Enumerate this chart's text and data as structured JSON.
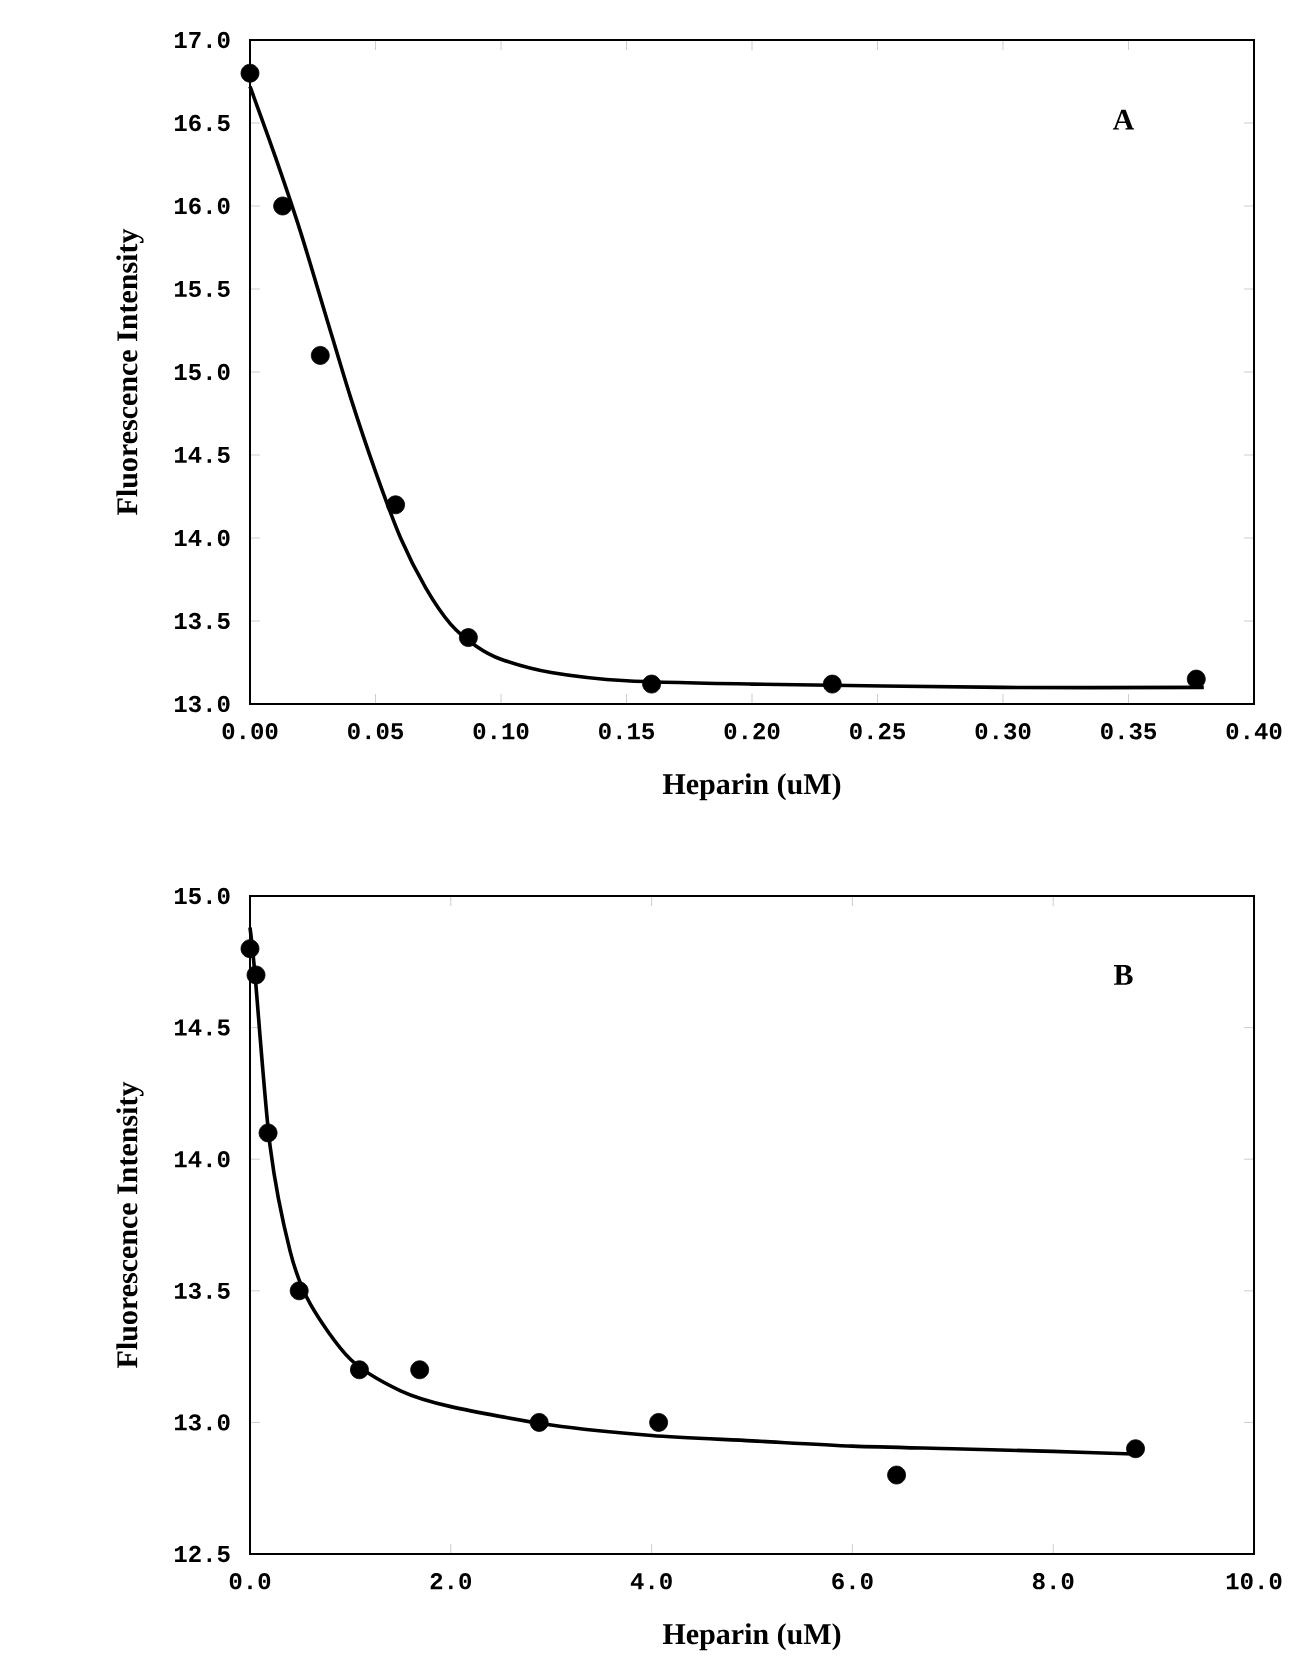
{
  "chart_data": [
    {
      "type": "scatter",
      "xlabel": "Heparin (uM)",
      "ylabel": "Fluorescence Intensity",
      "annotations": [
        "A"
      ],
      "xlim": [
        0,
        0.4
      ],
      "ylim": [
        13.0,
        17.0
      ],
      "xticks": [
        {
          "value": 0,
          "label": "0.00"
        },
        {
          "value": 0.05,
          "label": "0.05"
        },
        {
          "value": 0.1,
          "label": "0.10"
        },
        {
          "value": 0.15,
          "label": "0.15"
        },
        {
          "value": 0.2,
          "label": "0.20"
        },
        {
          "value": 0.25,
          "label": "0.25"
        },
        {
          "value": 0.3,
          "label": "0.30"
        },
        {
          "value": 0.35,
          "label": "0.35"
        },
        {
          "value": 0.4,
          "label": "0.40"
        }
      ],
      "yticks": [
        {
          "value": 13,
          "label": "13.0"
        },
        {
          "value": 13.5,
          "label": "13.5"
        },
        {
          "value": 14,
          "label": "14.0"
        },
        {
          "value": 14.5,
          "label": "14.5"
        },
        {
          "value": 15,
          "label": "15.0"
        },
        {
          "value": 15.5,
          "label": "15.5"
        },
        {
          "value": 16,
          "label": "16.0"
        },
        {
          "value": 16.5,
          "label": "16.5"
        },
        {
          "value": 17,
          "label": "17.0"
        }
      ],
      "series": [
        {
          "marker": "circle",
          "color": "#000000",
          "x": [
            0,
            0.013,
            0.028,
            0.058,
            0.087,
            0.16,
            0.232,
            0.377
          ],
          "values": [
            16.8,
            16.0,
            15.1,
            14.2,
            13.4,
            13.12,
            13.12,
            13.15
          ]
        },
        {
          "type": "line",
          "marker": "none",
          "line_style": "solid",
          "color": "#000000",
          "x": [
            0,
            0.01,
            0.02,
            0.03,
            0.04,
            0.05,
            0.06,
            0.07,
            0.08,
            0.09,
            0.1,
            0.12,
            0.15,
            0.2,
            0.3,
            0.38
          ],
          "values": [
            16.72,
            16.3,
            15.85,
            15.35,
            14.85,
            14.4,
            14.0,
            13.7,
            13.48,
            13.35,
            13.27,
            13.19,
            13.14,
            13.12,
            13.1,
            13.1
          ]
        }
      ]
    },
    {
      "type": "scatter",
      "xlabel": "Heparin  (uM)",
      "ylabel": "Fluorescence Intensity",
      "annotations": [
        "B"
      ],
      "xlim": [
        0,
        10
      ],
      "ylim": [
        12.5,
        15.0
      ],
      "xticks": [
        {
          "value": 0,
          "label": "0.0"
        },
        {
          "value": 2,
          "label": "2.0"
        },
        {
          "value": 4,
          "label": "4.0"
        },
        {
          "value": 6,
          "label": "6.0"
        },
        {
          "value": 8,
          "label": "8.0"
        },
        {
          "value": 10,
          "label": "10.0"
        }
      ],
      "yticks": [
        {
          "value": 12.5,
          "label": "12.5"
        },
        {
          "value": 13,
          "label": "13.0"
        },
        {
          "value": 13.5,
          "label": "13.5"
        },
        {
          "value": 14,
          "label": "14.0"
        },
        {
          "value": 14.5,
          "label": "14.5"
        },
        {
          "value": 15,
          "label": "15.0"
        }
      ],
      "series": [
        {
          "marker": "circle",
          "color": "#000000",
          "x": [
            0,
            0.06,
            0.18,
            0.49,
            1.09,
            1.69,
            2.88,
            4.07,
            6.44,
            8.82
          ],
          "values": [
            14.8,
            14.7,
            14.1,
            13.5,
            13.2,
            13.2,
            13.0,
            13.0,
            12.8,
            12.9
          ]
        },
        {
          "type": "line",
          "marker": "none",
          "line_style": "solid",
          "color": "#000000",
          "x": [
            0,
            0.05,
            0.2,
            0.4,
            0.6,
            1.0,
            1.5,
            2.0,
            3.0,
            4.0,
            5.0,
            6.0,
            7.0,
            8.0,
            8.8
          ],
          "values": [
            14.88,
            14.7,
            14.05,
            13.65,
            13.45,
            13.24,
            13.12,
            13.06,
            12.99,
            12.95,
            12.93,
            12.91,
            12.9,
            12.89,
            12.88
          ]
        }
      ]
    }
  ]
}
